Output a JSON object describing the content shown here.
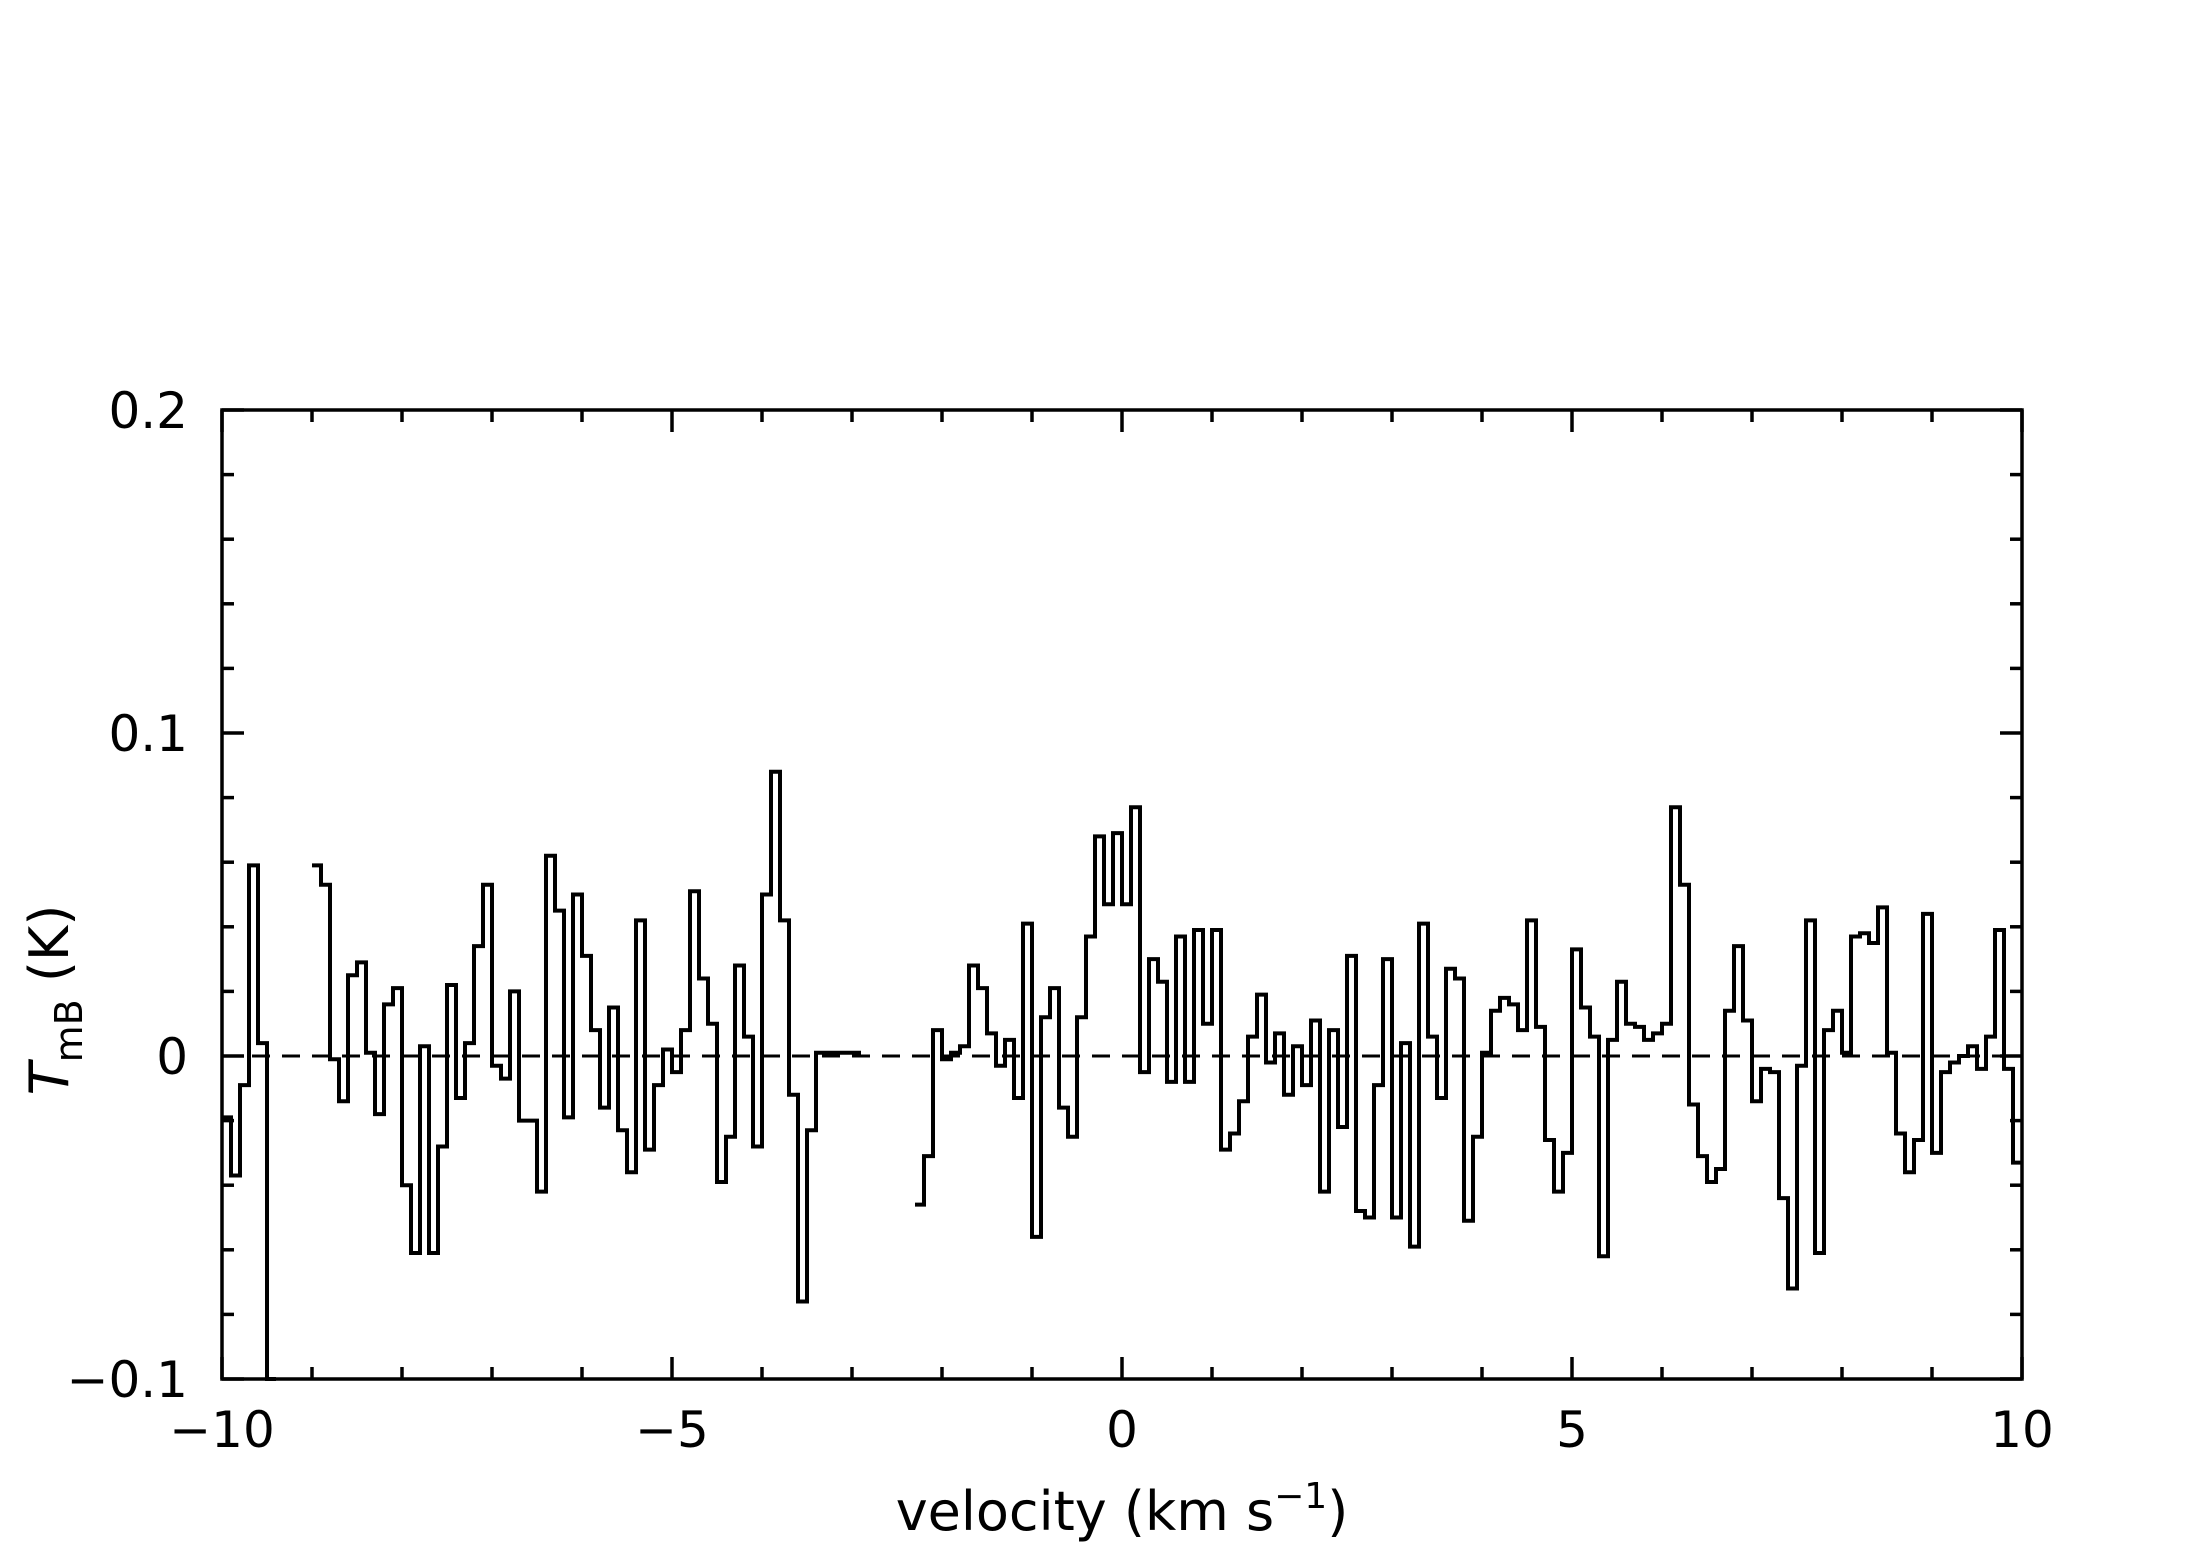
{
  "chart_data": {
    "type": "line",
    "style": "step",
    "xlabel": "velocity (km s",
    "xlabel_sup": "−1",
    "xlabel_end": ")",
    "ylabel_main": "T",
    "ylabel_sub": "mB",
    "ylabel_end": " (K)",
    "xlim": [
      -10,
      10
    ],
    "ylim": [
      -0.1,
      0.2
    ],
    "xticks": [
      -10,
      -5,
      0,
      5,
      10
    ],
    "xtick_labels": [
      "−10",
      "−5",
      "0",
      "5",
      "10"
    ],
    "yticks": [
      -0.1,
      0,
      0.1,
      0.2
    ],
    "ytick_labels": [
      "−0.1",
      "0",
      "0.1",
      "0.2"
    ],
    "reference_line": {
      "y": 0,
      "style": "dashed"
    },
    "grid": false,
    "legend": "none",
    "series": [
      {
        "segments": [
          {
            "x": [
              -10.0,
              -9.9,
              -9.8,
              -9.7,
              -9.6,
              -9.5
            ],
            "y": [
              -0.019,
              -0.037,
              -0.009,
              0.059,
              0.004,
              -0.1
            ]
          },
          {
            "x": [
              -9.0,
              -8.9,
              -8.8,
              -8.7,
              -8.6,
              -8.5,
              -8.4,
              -8.3,
              -8.2,
              -8.1,
              -8.0,
              -7.9,
              -7.8,
              -7.7,
              -7.6,
              -7.5,
              -7.4,
              -7.3,
              -7.2,
              -7.1,
              -7.0,
              -6.9,
              -6.8,
              -6.7,
              -6.6,
              -6.5,
              -6.4,
              -6.3,
              -6.2,
              -6.1,
              -6.0,
              -5.9,
              -5.8,
              -5.7,
              -5.6,
              -5.5,
              -5.4,
              -5.3,
              -5.2,
              -5.1,
              -5.0,
              -4.9,
              -4.8,
              -4.7,
              -4.6,
              -4.5,
              -4.4,
              -4.3,
              -4.2,
              -4.1,
              -4.0,
              -3.9,
              -3.8,
              -3.7,
              -3.6,
              -3.5,
              -3.4,
              -3.3,
              -3.2,
              -3.1,
              -3.0
            ],
            "y": [
              0.059,
              0.053,
              -0.001,
              -0.014,
              0.025,
              0.029,
              0.001,
              -0.018,
              0.016,
              0.021,
              -0.04,
              -0.061,
              0.003,
              -0.061,
              -0.028,
              0.022,
              -0.013,
              0.004,
              0.034,
              0.053,
              -0.003,
              -0.007,
              0.02,
              -0.02,
              -0.02,
              -0.042,
              0.062,
              0.045,
              -0.019,
              0.05,
              0.031,
              0.008,
              -0.016,
              0.015,
              -0.023,
              -0.036,
              0.042,
              -0.029,
              -0.009,
              0.002,
              -0.005,
              0.008,
              0.051,
              0.024,
              0.01,
              -0.039,
              -0.025,
              0.028,
              0.006,
              -0.028,
              0.05,
              0.088,
              0.042,
              -0.012,
              -0.076,
              -0.023,
              0.001,
              0.001,
              0.001,
              0.001,
              0.001
            ]
          },
          {
            "x": [
              -2.3,
              -2.2,
              -2.1,
              -2.0,
              -1.9,
              -1.8,
              -1.7,
              -1.6,
              -1.5,
              -1.4,
              -1.3,
              -1.2,
              -1.1,
              -1.0,
              -0.9,
              -0.8,
              -0.7,
              -0.6,
              -0.5,
              -0.4,
              -0.3,
              -0.2,
              -0.1,
              0.0,
              0.1,
              0.2,
              0.3,
              0.4,
              0.5,
              0.6,
              0.7,
              0.8,
              0.9,
              1.0,
              1.1,
              1.2,
              1.3,
              1.4,
              1.5,
              1.6,
              1.7,
              1.8,
              1.9,
              2.0,
              2.1,
              2.2,
              2.3,
              2.4,
              2.5,
              2.6,
              2.7,
              2.8,
              2.9,
              3.0,
              3.1,
              3.2,
              3.3,
              3.4,
              3.5,
              3.6,
              3.7,
              3.8,
              3.9,
              4.0,
              4.1,
              4.2,
              4.3,
              4.4,
              4.5,
              4.6,
              4.7,
              4.8,
              4.9,
              5.0,
              5.1,
              5.2,
              5.3,
              5.4,
              5.5,
              5.6,
              5.7,
              5.8,
              5.9,
              6.0,
              6.1,
              6.2,
              6.3,
              6.4,
              6.5,
              6.6,
              6.7,
              6.8,
              6.9,
              7.0,
              7.1,
              7.2,
              7.3,
              7.4,
              7.5,
              7.6,
              7.7,
              7.8,
              7.9,
              8.0,
              8.1,
              8.2,
              8.3,
              8.4,
              8.5,
              8.6,
              8.7,
              8.8,
              8.9,
              9.0,
              9.1,
              9.2,
              9.3,
              9.4,
              9.5,
              9.6,
              9.7,
              9.8,
              9.9
            ],
            "y": [
              -0.046,
              -0.031,
              0.008,
              -0.001,
              0.001,
              0.003,
              0.028,
              0.021,
              0.007,
              -0.003,
              0.005,
              -0.013,
              0.041,
              -0.056,
              0.012,
              0.021,
              -0.016,
              -0.025,
              0.012,
              0.037,
              0.068,
              0.047,
              0.069,
              0.047,
              0.077,
              -0.005,
              0.03,
              0.023,
              -0.008,
              0.037,
              -0.008,
              0.039,
              0.01,
              0.039,
              -0.029,
              -0.024,
              -0.014,
              0.006,
              0.019,
              -0.002,
              0.007,
              -0.012,
              0.003,
              -0.009,
              0.011,
              -0.042,
              0.008,
              -0.022,
              0.031,
              -0.048,
              -0.05,
              -0.009,
              0.03,
              -0.05,
              0.004,
              -0.059,
              0.041,
              0.006,
              -0.013,
              0.027,
              0.024,
              -0.051,
              -0.025,
              0.001,
              0.014,
              0.018,
              0.016,
              0.008,
              0.042,
              0.009,
              -0.026,
              -0.042,
              -0.03,
              0.033,
              0.015,
              0.006,
              -0.062,
              0.005,
              0.023,
              0.01,
              0.009,
              0.005,
              0.007,
              0.01,
              0.077,
              0.053,
              -0.015,
              -0.031,
              -0.039,
              -0.035,
              0.014,
              0.034,
              0.011,
              -0.014,
              -0.004,
              -0.005,
              -0.044,
              -0.072,
              -0.003,
              0.042,
              -0.061,
              0.008,
              0.014,
              0.001,
              0.037,
              0.038,
              0.035,
              0.046,
              0.001,
              -0.024,
              -0.036,
              -0.026,
              0.044,
              -0.03,
              -0.005,
              -0.002,
              0.0,
              0.003,
              -0.004,
              0.006,
              0.039,
              -0.004,
              -0.033
            ]
          }
        ]
      }
    ]
  }
}
